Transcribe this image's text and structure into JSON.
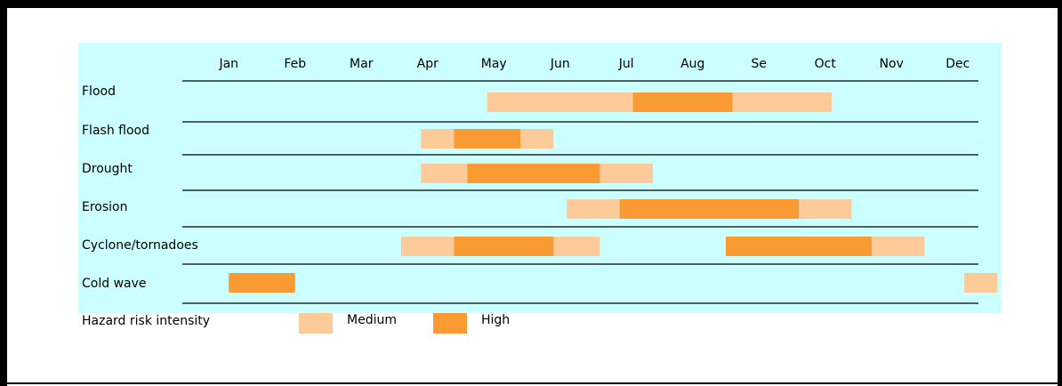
{
  "chart_data": {
    "type": "timeline",
    "categories": [
      "Jan",
      "Feb",
      "Mar",
      "Apr",
      "May",
      "Jun",
      "Jul",
      "Aug",
      "Se",
      "Oct",
      "Nov",
      "Dec"
    ],
    "xlim": [
      0,
      12
    ],
    "rows": [
      "Flood",
      "Flash flood",
      "Drought",
      "Erosion",
      "Cyclone/tornadoes",
      "Cold wave"
    ],
    "legend_title": "Hazard risk intensity",
    "series": [
      {
        "name": "Medium",
        "color": "#fdca9a",
        "ranges": [
          [
            [
              4.4,
              9.6
            ]
          ],
          [
            [
              3.4,
              5.4
            ]
          ],
          [
            [
              3.4,
              6.9
            ]
          ],
          [
            [
              5.6,
              9.9
            ]
          ],
          [
            [
              3.1,
              6.1
            ],
            [
              8.0,
              11.0
            ]
          ],
          [
            [
              11.6,
              12.1
            ]
          ]
        ]
      },
      {
        "name": "High",
        "color": "#f99a32",
        "ranges": [
          [
            [
              6.6,
              8.1
            ]
          ],
          [
            [
              3.9,
              4.9
            ]
          ],
          [
            [
              4.1,
              6.1
            ]
          ],
          [
            [
              6.4,
              9.1
            ]
          ],
          [
            [
              3.9,
              5.4
            ],
            [
              8.0,
              10.2
            ]
          ],
          [
            [
              0.5,
              1.5
            ]
          ]
        ]
      }
    ]
  }
}
